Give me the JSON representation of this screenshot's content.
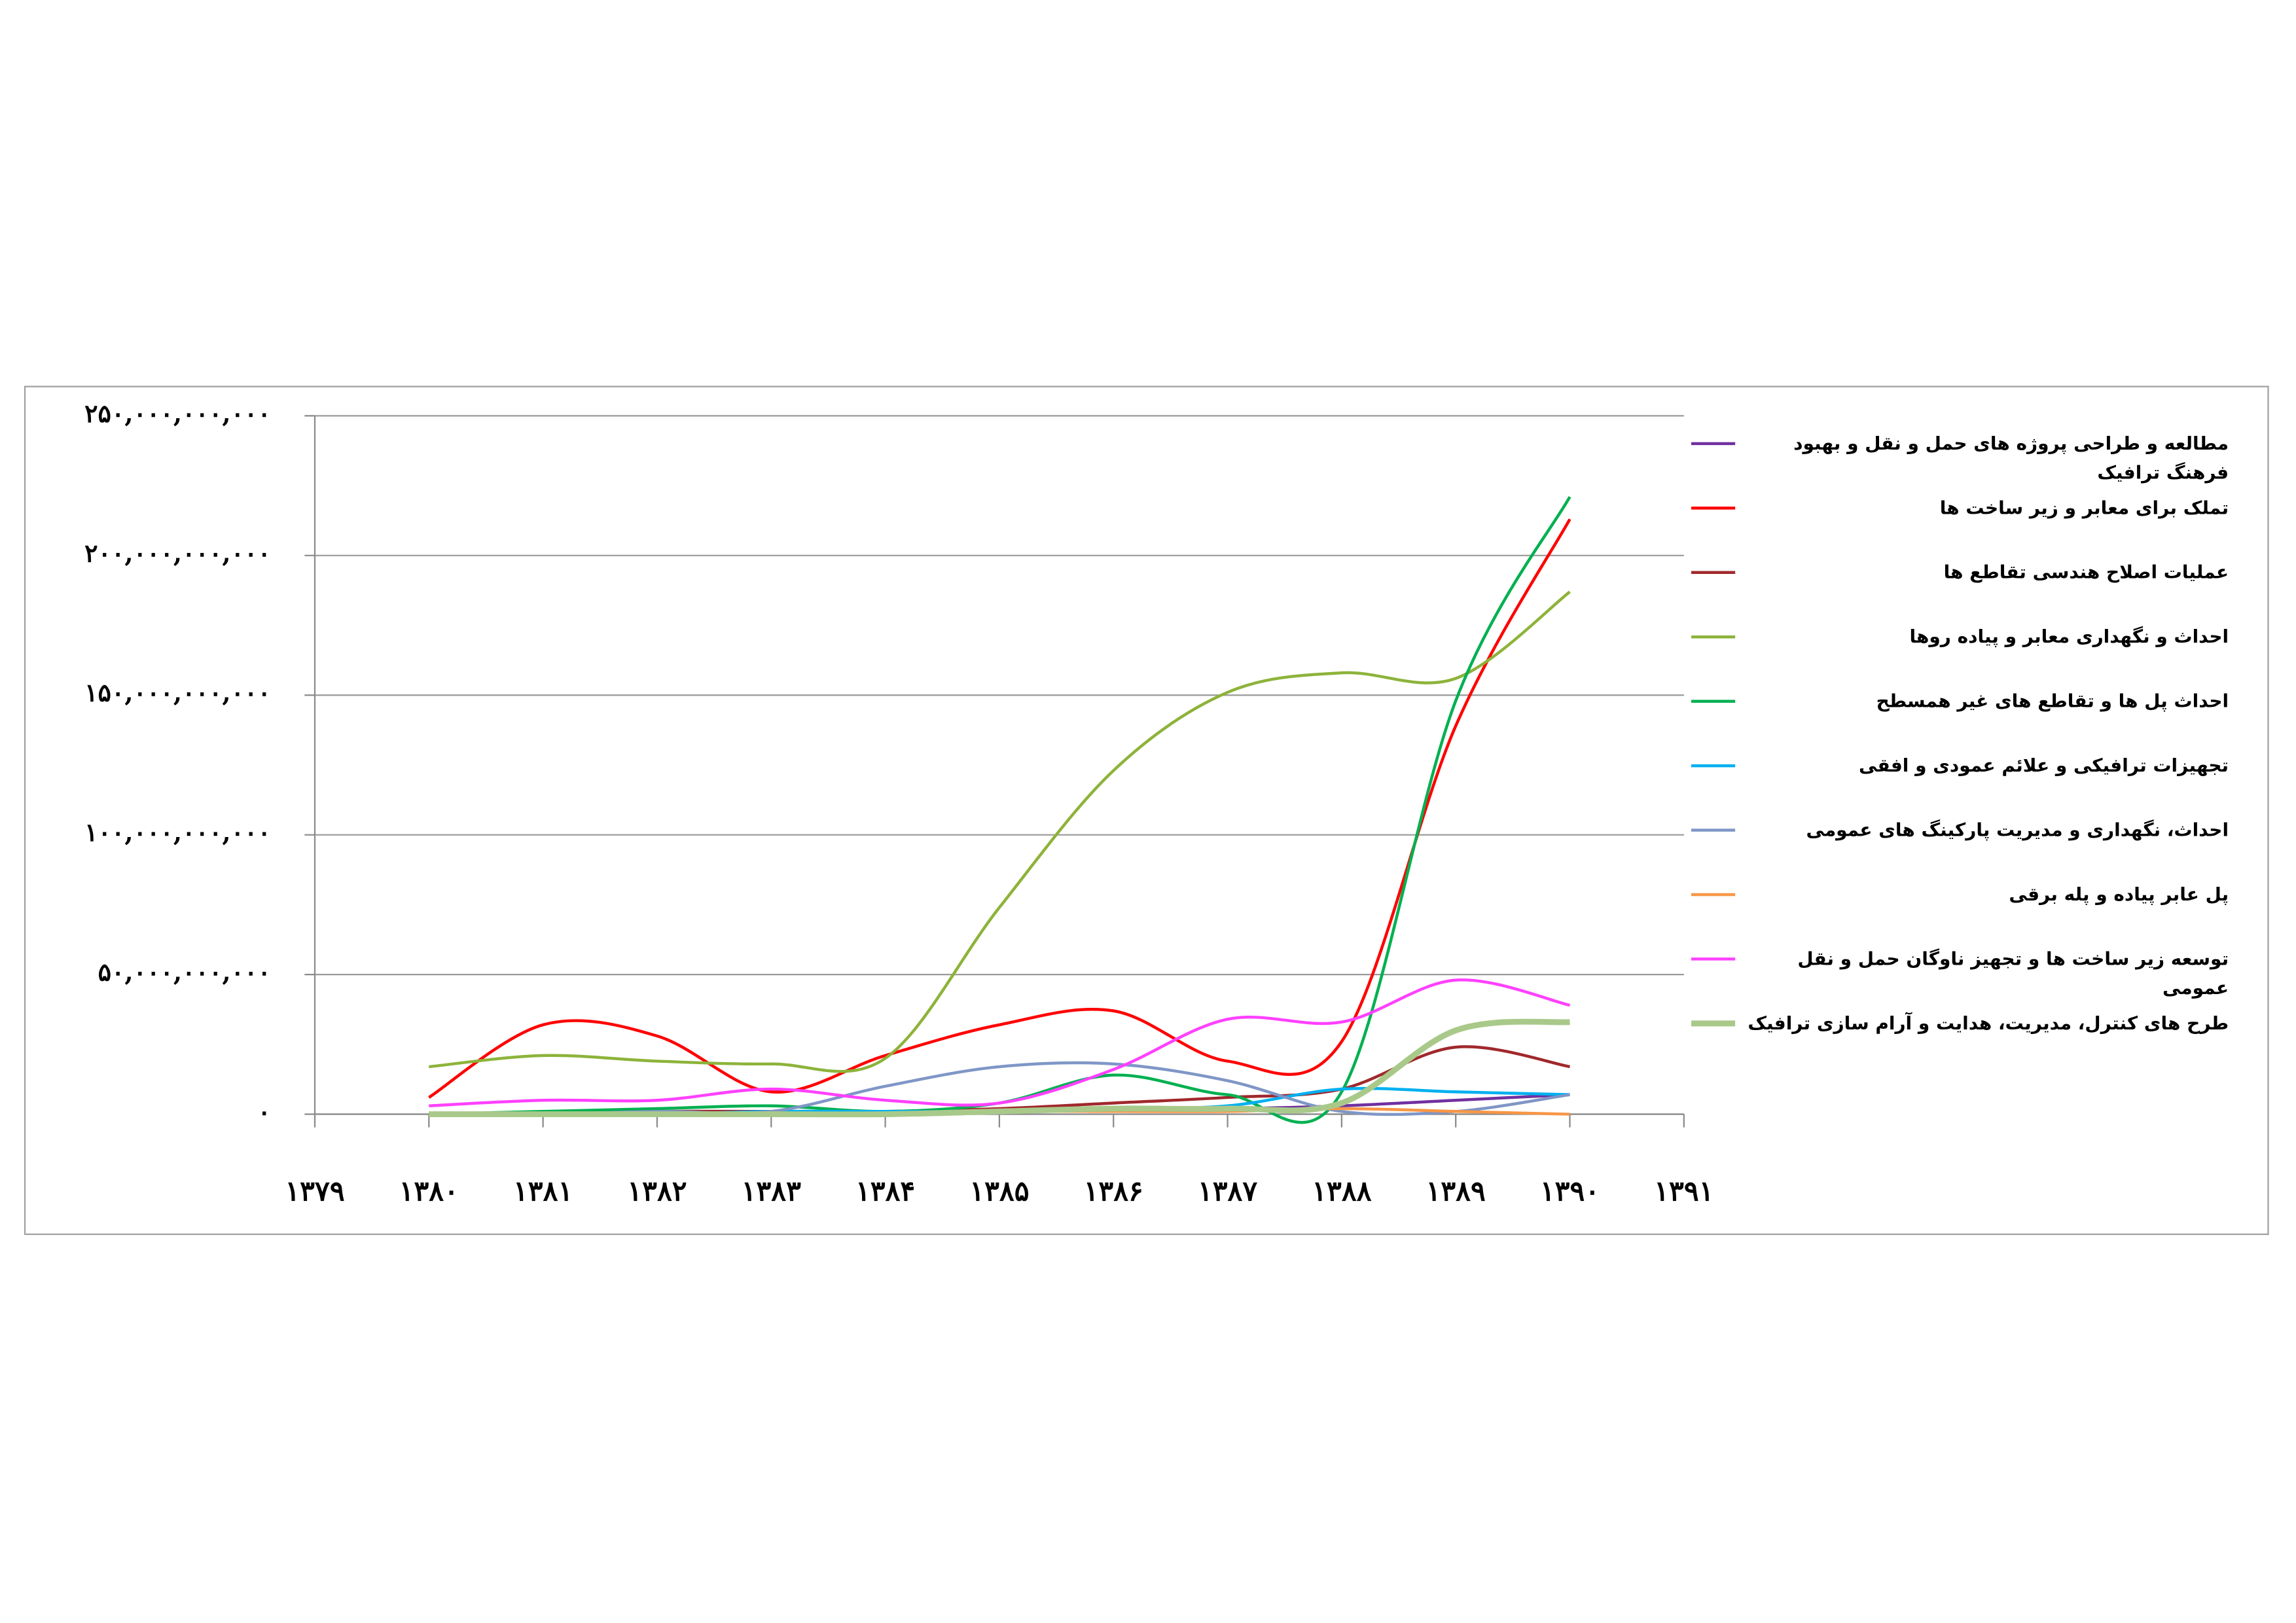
{
  "chart_data": {
    "type": "line",
    "x": [
      1380,
      1381,
      1382,
      1383,
      1384,
      1385,
      1386,
      1387,
      1388,
      1389,
      1390
    ],
    "xlim": [
      1379,
      1391
    ],
    "xticks": [
      {
        "value": 1379,
        "label": "۱۳۷۹"
      },
      {
        "value": 1380,
        "label": "۱۳۸۰"
      },
      {
        "value": 1381,
        "label": "۱۳۸۱"
      },
      {
        "value": 1382,
        "label": "۱۳۸۲"
      },
      {
        "value": 1383,
        "label": "۱۳۸۳"
      },
      {
        "value": 1384,
        "label": "۱۳۸۴"
      },
      {
        "value": 1385,
        "label": "۱۳۸۵"
      },
      {
        "value": 1386,
        "label": "۱۳۸۶"
      },
      {
        "value": 1387,
        "label": "۱۳۸۷"
      },
      {
        "value": 1388,
        "label": "۱۳۸۸"
      },
      {
        "value": 1389,
        "label": "۱۳۸۹"
      },
      {
        "value": 1390,
        "label": "۱۳۹۰"
      },
      {
        "value": 1391,
        "label": "۱۳۹۱"
      }
    ],
    "ylim": [
      0,
      250000000000
    ],
    "yticks": [
      {
        "value": 0,
        "label": "۰"
      },
      {
        "value": 50000000000,
        "label": "۵۰,۰۰۰,۰۰۰,۰۰۰"
      },
      {
        "value": 100000000000,
        "label": "۱۰۰,۰۰۰,۰۰۰,۰۰۰"
      },
      {
        "value": 150000000000,
        "label": "۱۵۰,۰۰۰,۰۰۰,۰۰۰"
      },
      {
        "value": 200000000000,
        "label": "۲۰۰,۰۰۰,۰۰۰,۰۰۰"
      },
      {
        "value": 250000000000,
        "label": "۲۵۰,۰۰۰,۰۰۰,۰۰۰"
      }
    ],
    "grid": true,
    "legend": "right",
    "series": [
      {
        "name": "مطالعه و طراحی پروژه های حمل و نقل و بهبود فرهنگ ترافیک",
        "color": "#7030a0",
        "values": [
          0,
          0,
          500000000,
          500000000,
          500000000,
          1000000000,
          2000000000,
          2000000000,
          3000000000,
          5000000000,
          7000000000
        ]
      },
      {
        "name": "تملک برای معابر و زیر ساخت ها",
        "color": "#ff0000",
        "values": [
          6000000000,
          32000000000,
          28000000000,
          8000000000,
          21000000000,
          32000000000,
          37000000000,
          19000000000,
          26000000000,
          139000000000,
          213000000000
        ]
      },
      {
        "name": "عملیات اصلاح هندسی تقاطع ها",
        "color": "#a0282c",
        "values": [
          0,
          0,
          1000000000,
          1000000000,
          1000000000,
          2000000000,
          4000000000,
          6000000000,
          9000000000,
          24000000000,
          17000000000
        ]
      },
      {
        "name": "احداث و نگهداری معابر و پیاده روها",
        "color": "#8db33a",
        "values": [
          17000000000,
          21000000000,
          19000000000,
          18000000000,
          20000000000,
          74000000000,
          123000000000,
          151000000000,
          158000000000,
          156000000000,
          187000000000
        ]
      },
      {
        "name": "احداث پل ها و تقاطع های غیر همسطح",
        "color": "#00b050",
        "values": [
          0,
          1000000000,
          2000000000,
          3000000000,
          1000000000,
          4000000000,
          14000000000,
          7000000000,
          8000000000,
          148000000000,
          221000000000
        ]
      },
      {
        "name": "تجهیزات ترافیکی و علائم عمودی و افقی",
        "color": "#00b0f0",
        "values": [
          0,
          0,
          0,
          1000000000,
          1000000000,
          1000000000,
          2000000000,
          3000000000,
          9000000000,
          8000000000,
          7000000000
        ]
      },
      {
        "name": "احداث، نگهداری و مدیریت پارکینگ های عمومی",
        "color": "#7f96c6",
        "values": [
          0,
          0,
          1000000000,
          1000000000,
          10000000000,
          17000000000,
          18000000000,
          12000000000,
          1000000000,
          1000000000,
          7000000000
        ]
      },
      {
        "name": "پل عابر پیاده و پله برقی",
        "color": "#f79646",
        "values": [
          0,
          0,
          0,
          0,
          0,
          1000000000,
          1000000000,
          1000000000,
          2000000000,
          1000000000,
          0
        ]
      },
      {
        "name": "توسعه زیر ساخت ها و تجهیز ناوگان حمل و نقل عمومی",
        "color": "#ff40ff",
        "values": [
          3000000000,
          5000000000,
          5000000000,
          9000000000,
          5000000000,
          4000000000,
          16000000000,
          34000000000,
          33000000000,
          48000000000,
          39000000000
        ]
      },
      {
        "name": "طرح های کنترل، مدیریت، هدایت و آرام سازی ترافیک",
        "color": "#a9c98a",
        "values": [
          0,
          0,
          0,
          0,
          0,
          1000000000,
          2000000000,
          2000000000,
          4000000000,
          30000000000,
          33000000000
        ]
      }
    ]
  }
}
